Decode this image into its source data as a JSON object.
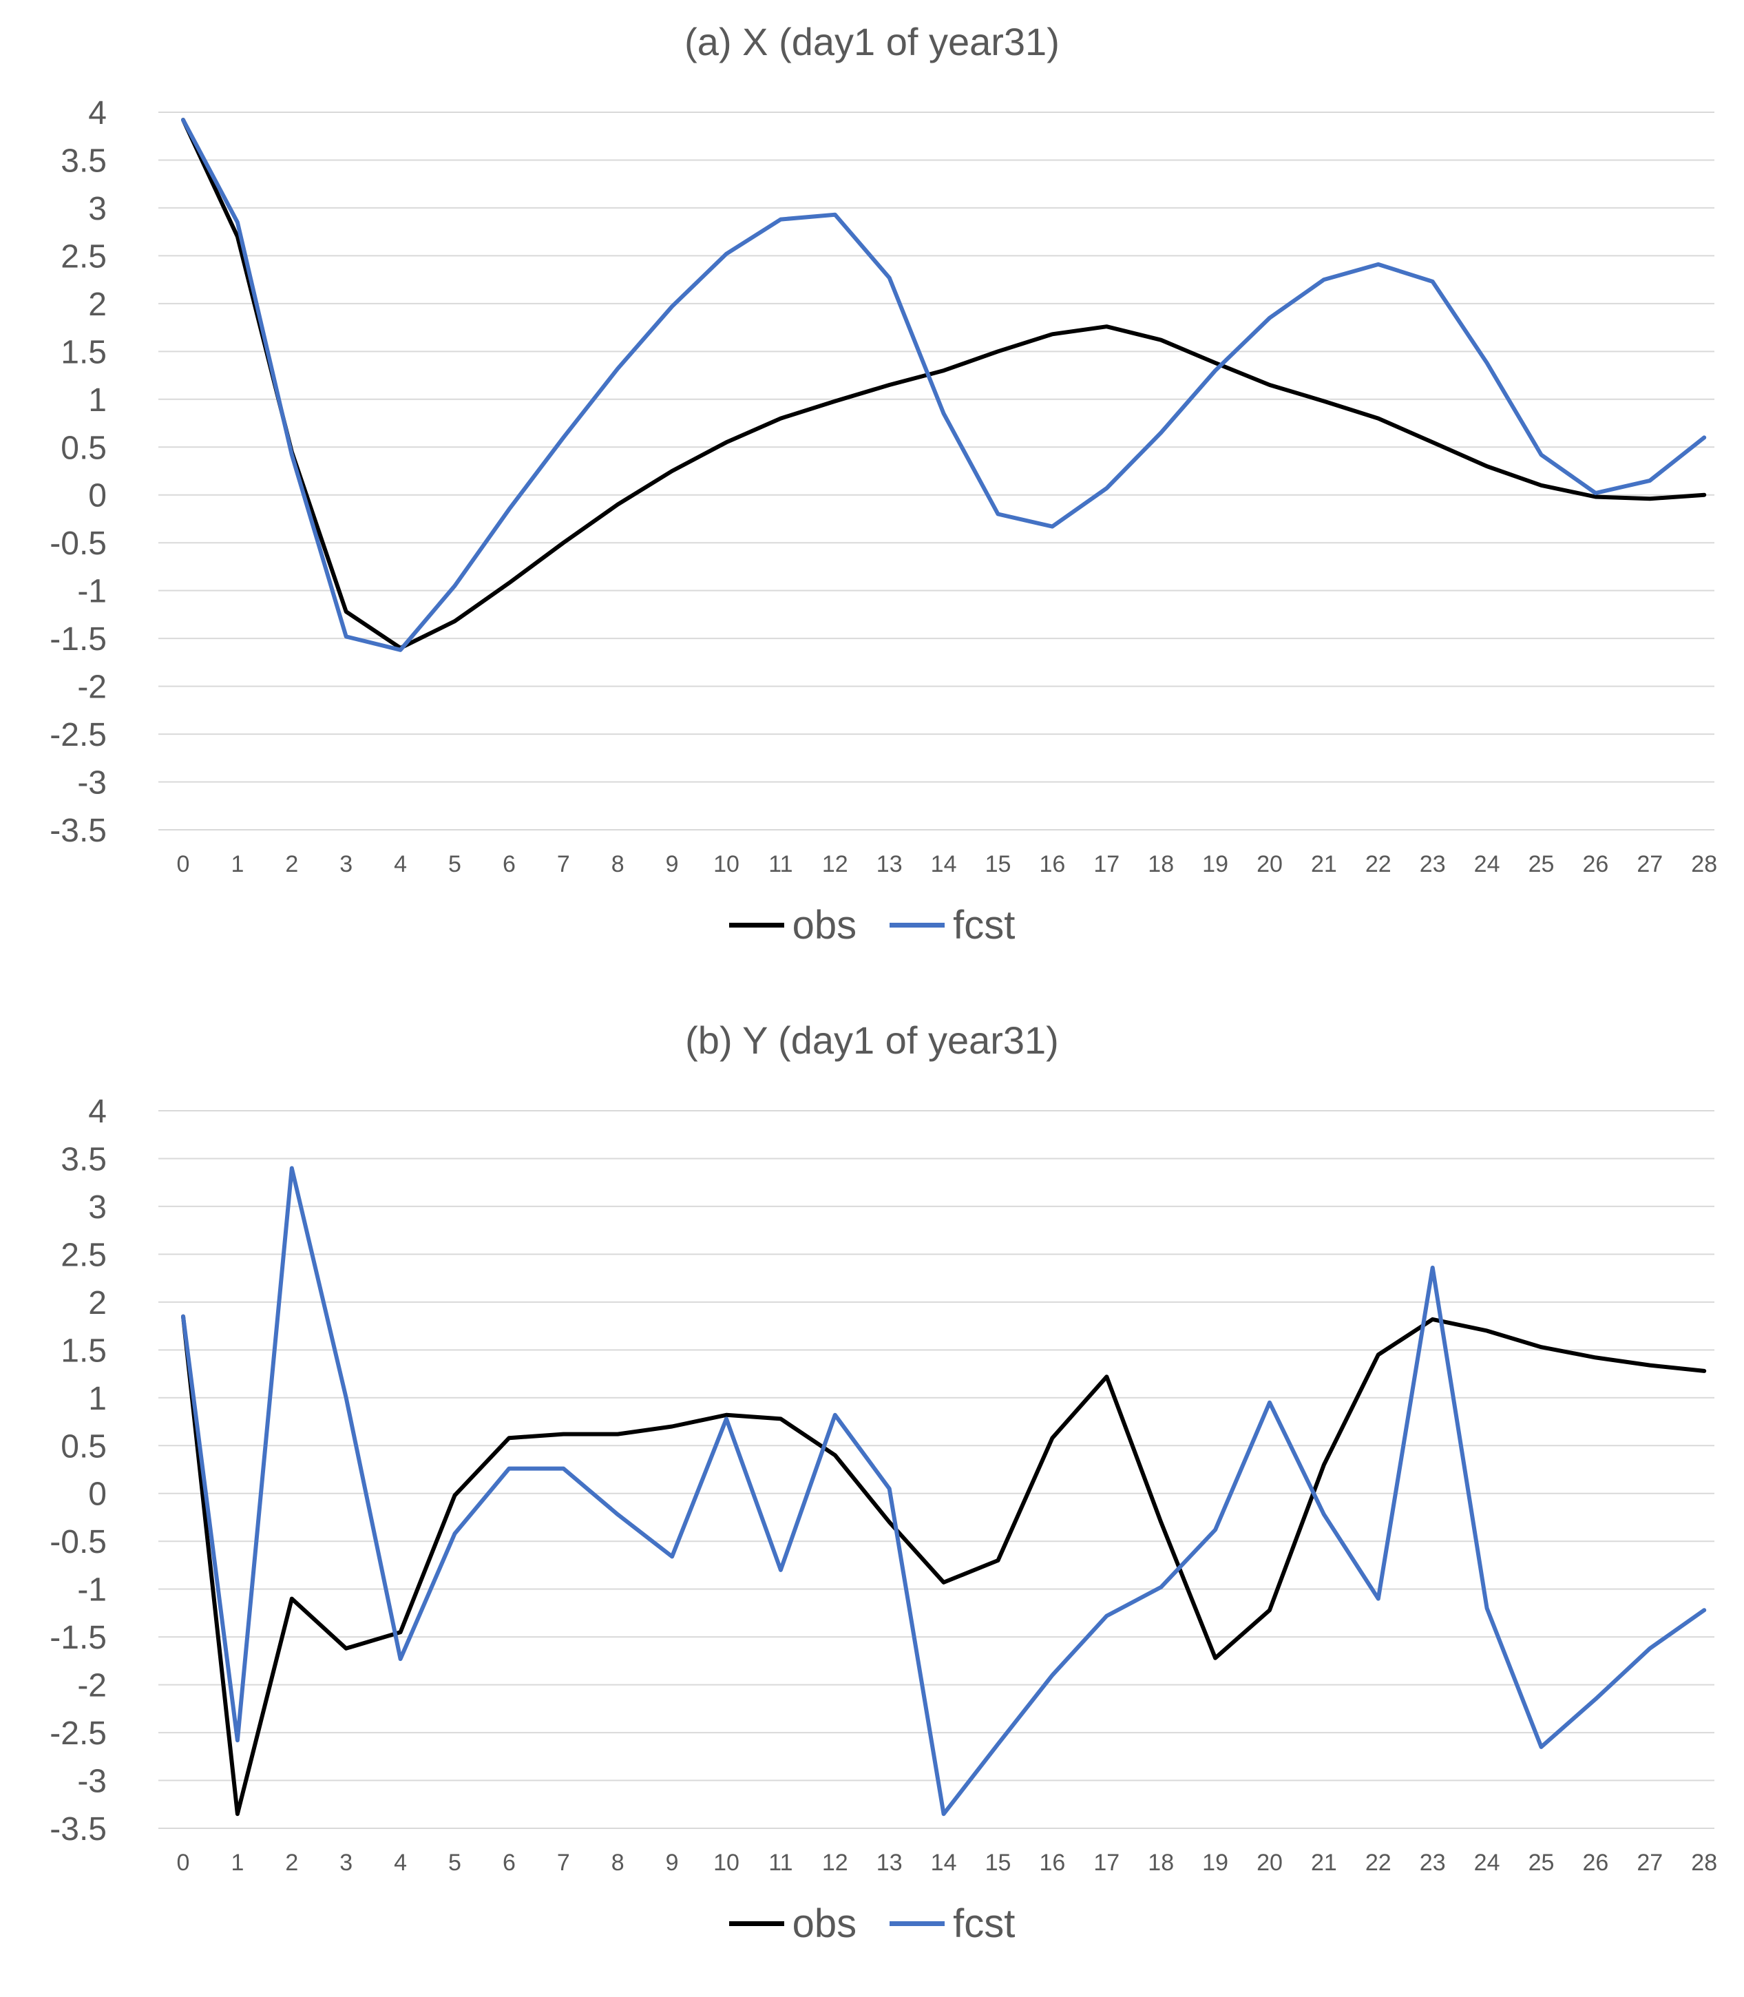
{
  "chart_data": [
    {
      "id": "a",
      "type": "line",
      "title": "(a) X (day1 of year31)",
      "categories": [
        0,
        1,
        2,
        3,
        4,
        5,
        6,
        7,
        8,
        9,
        10,
        11,
        12,
        13,
        14,
        15,
        16,
        17,
        18,
        19,
        20,
        21,
        22,
        23,
        24,
        25,
        26,
        27,
        28
      ],
      "ylim": [
        -3.5,
        4
      ],
      "ystep": 0.5,
      "yticks": [
        "4",
        "3.5",
        "3",
        "2.5",
        "2",
        "1.5",
        "1",
        "0.5",
        "0",
        "-0.5",
        "-1",
        "-1.5",
        "-2",
        "-2.5",
        "-3",
        "-3.5"
      ],
      "grid": true,
      "legend_position": "bottom",
      "series": [
        {
          "name": "obs",
          "color": "#000000",
          "values": [
            3.92,
            2.7,
            0.45,
            -1.22,
            -1.6,
            -1.32,
            -0.92,
            -0.5,
            -0.1,
            0.25,
            0.55,
            0.8,
            0.98,
            1.15,
            1.3,
            1.5,
            1.68,
            1.76,
            1.62,
            1.38,
            1.15,
            0.98,
            0.8,
            0.55,
            0.3,
            0.1,
            -0.02,
            -0.04,
            0.0
          ]
        },
        {
          "name": "fcst",
          "color": "#4472C4",
          "values": [
            3.92,
            2.85,
            0.42,
            -1.48,
            -1.62,
            -0.95,
            -0.15,
            0.6,
            1.32,
            1.97,
            2.52,
            2.88,
            2.93,
            2.27,
            0.85,
            -0.2,
            -0.33,
            0.07,
            0.65,
            1.3,
            1.85,
            2.25,
            2.41,
            2.23,
            1.38,
            0.42,
            0.02,
            0.15,
            0.6
          ]
        }
      ]
    },
    {
      "id": "b",
      "type": "line",
      "title": "(b) Y (day1 of year31)",
      "categories": [
        0,
        1,
        2,
        3,
        4,
        5,
        6,
        7,
        8,
        9,
        10,
        11,
        12,
        13,
        14,
        15,
        16,
        17,
        18,
        19,
        20,
        21,
        22,
        23,
        24,
        25,
        26,
        27,
        28
      ],
      "ylim": [
        -3.5,
        4
      ],
      "ystep": 0.5,
      "yticks": [
        "4",
        "3.5",
        "3",
        "2.5",
        "2",
        "1.5",
        "1",
        "0.5",
        "0",
        "-0.5",
        "-1",
        "-1.5",
        "-2",
        "-2.5",
        "-3",
        "-3.5"
      ],
      "grid": true,
      "legend_position": "bottom",
      "series": [
        {
          "name": "obs",
          "color": "#000000",
          "values": [
            1.85,
            -3.35,
            -1.1,
            -1.62,
            -1.45,
            -0.02,
            0.58,
            0.62,
            0.62,
            0.7,
            0.82,
            0.78,
            0.4,
            -0.3,
            -0.93,
            -0.7,
            0.58,
            1.22,
            -0.3,
            -1.72,
            -1.22,
            0.3,
            1.45,
            1.82,
            1.7,
            1.53,
            1.42,
            1.34,
            1.28
          ]
        },
        {
          "name": "fcst",
          "color": "#4472C4",
          "values": [
            1.85,
            -2.58,
            3.4,
            1.0,
            -1.73,
            -0.42,
            0.26,
            0.26,
            -0.22,
            -0.66,
            0.78,
            -0.8,
            0.82,
            0.05,
            -3.35,
            -2.62,
            -1.9,
            -1.28,
            -0.98,
            -0.38,
            0.95,
            -0.22,
            -1.1,
            2.36,
            -1.2,
            -2.65,
            -2.15,
            -1.62,
            -1.22
          ]
        }
      ]
    }
  ]
}
